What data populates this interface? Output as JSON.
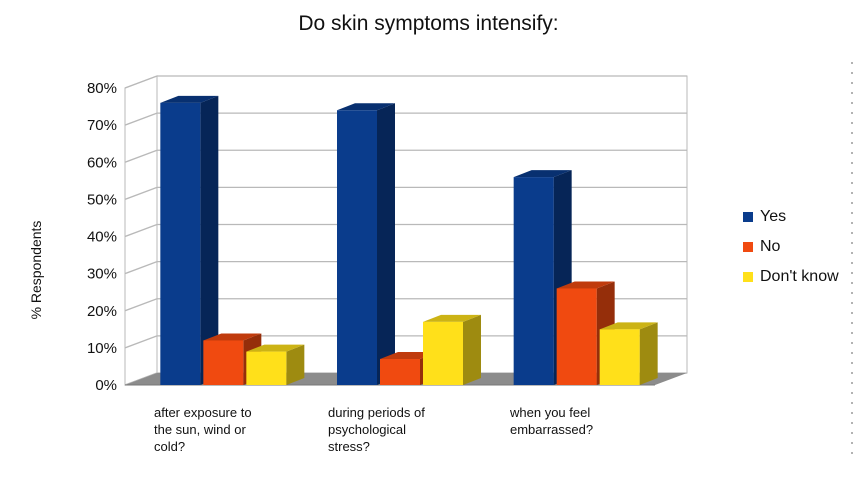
{
  "chart_data": {
    "type": "bar",
    "title": "Do skin symptoms intensify:",
    "xlabel": "",
    "ylabel": "% Respondents",
    "ylim": [
      0,
      80
    ],
    "yticks": [
      "0%",
      "10%",
      "20%",
      "30%",
      "40%",
      "50%",
      "60%",
      "70%",
      "80%"
    ],
    "grid": true,
    "legend_position": "right",
    "categories": [
      "after exposure to\nthe sun, wind or\ncold?",
      "during periods of\npsychological\nstress?",
      "when you feel\nembarrassed?"
    ],
    "series": [
      {
        "name": "Yes",
        "color": "#0a3c8c",
        "values": [
          76,
          74,
          56
        ]
      },
      {
        "name": "No",
        "color": "#f04a10",
        "values": [
          12,
          7,
          26
        ]
      },
      {
        "name": "Don't know",
        "color": "#ffe01a",
        "values": [
          9,
          17,
          15
        ]
      }
    ]
  }
}
